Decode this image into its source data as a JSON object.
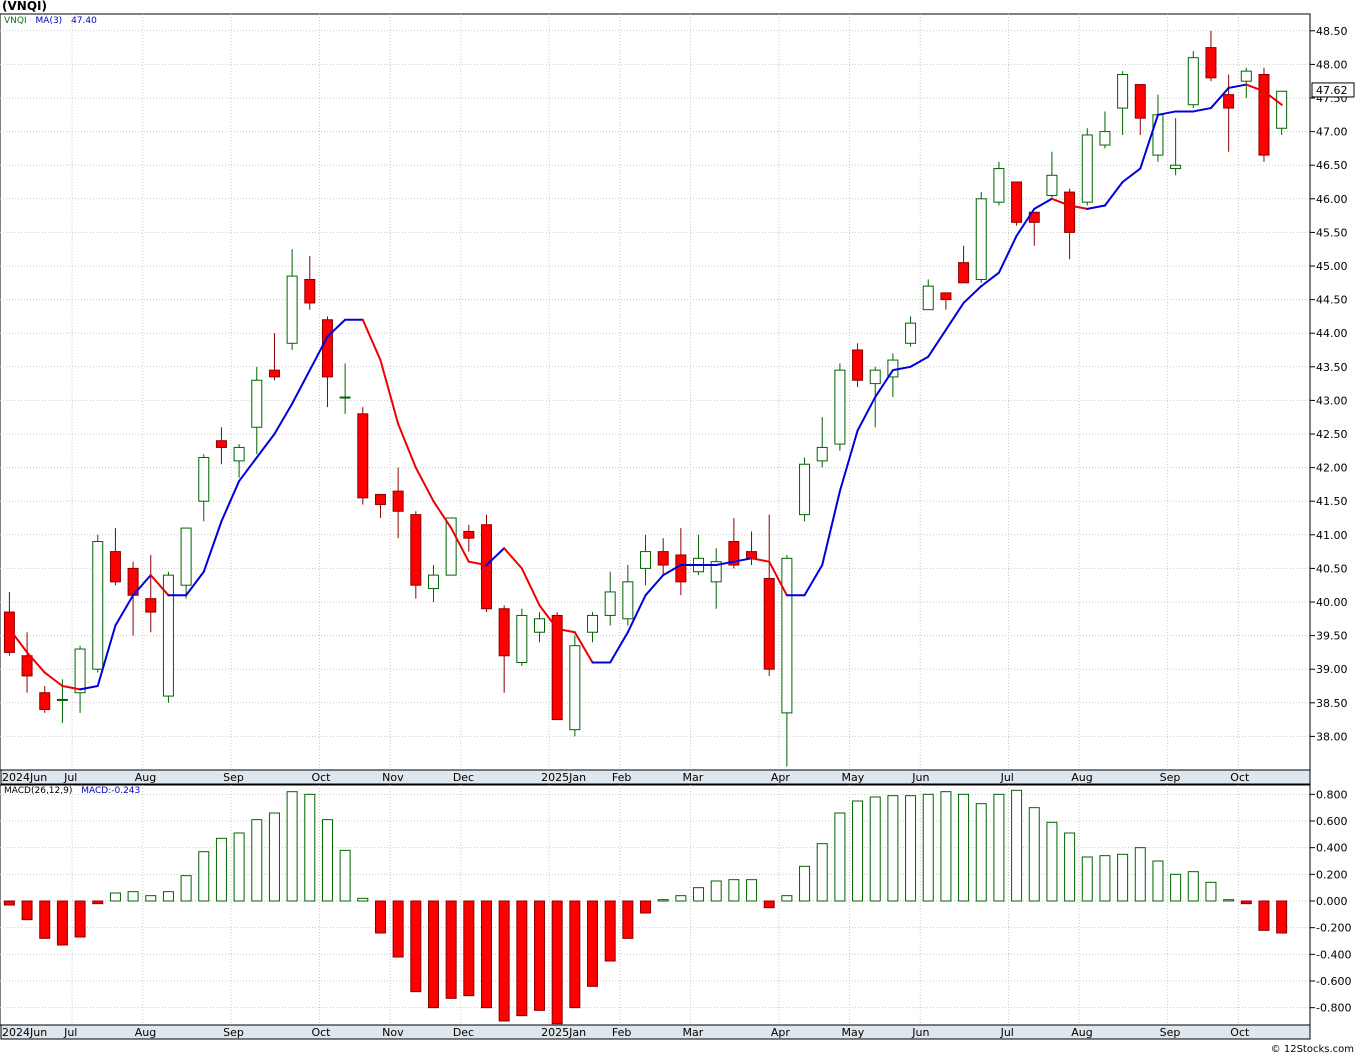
{
  "title": "(VNQI)",
  "watermark": "© 12Stocks.com",
  "price_legend": {
    "ticker": "VNQI",
    "indicator": "MA(3)",
    "value": "47.40"
  },
  "macd_legend": {
    "indicator": "MACD(26,12,9)",
    "value": "MACD:-0.243"
  },
  "last_price_label": "47.62",
  "colors": {
    "up": "#ffffff",
    "up_border": "#006400",
    "down": "#ff0000",
    "down_border": "#8b0000",
    "ma_up": "#0000dd",
    "ma_down": "#ee0000",
    "grid": "#c8c8c8",
    "axis_band": "#dfe7ee"
  },
  "chart_data": [
    {
      "type": "candlestick",
      "title": "(VNQI)",
      "ylim": [
        37.5,
        48.75
      ],
      "ytick_labels": [
        "38.00",
        "38.50",
        "39.00",
        "39.50",
        "40.00",
        "40.50",
        "41.00",
        "41.50",
        "42.00",
        "42.50",
        "43.00",
        "43.50",
        "44.00",
        "44.50",
        "45.00",
        "45.50",
        "46.00",
        "46.50",
        "47.00",
        "47.50",
        "48.00",
        "48.50"
      ],
      "x_labels": [
        "2024Jun",
        "Jul",
        "Aug",
        "Sep",
        "Oct",
        "Nov",
        "Dec",
        "2025Jan",
        "Feb",
        "Mar",
        "Apr",
        "May",
        "Jun",
        "Jul",
        "Aug",
        "Sep",
        "Oct"
      ],
      "x_label_weeks": [
        0,
        4,
        8,
        13,
        18,
        22,
        26,
        31,
        35,
        39,
        44,
        48,
        52,
        57,
        61,
        66,
        70
      ],
      "grid": true,
      "series": [
        {
          "name": "VNQI",
          "candles": [
            {
              "o": 39.85,
              "h": 40.15,
              "l": 39.2,
              "c": 39.25
            },
            {
              "o": 39.2,
              "h": 39.55,
              "l": 38.65,
              "c": 38.9
            },
            {
              "o": 38.65,
              "h": 38.75,
              "l": 38.35,
              "c": 38.4
            },
            {
              "o": 38.55,
              "h": 38.85,
              "l": 38.2,
              "c": 38.55
            },
            {
              "o": 38.65,
              "h": 39.35,
              "l": 38.35,
              "c": 39.3
            },
            {
              "o": 39.0,
              "h": 41.0,
              "l": 38.95,
              "c": 40.9
            },
            {
              "o": 40.75,
              "h": 41.1,
              "l": 40.25,
              "c": 40.3
            },
            {
              "o": 40.5,
              "h": 40.6,
              "l": 39.5,
              "c": 40.1
            },
            {
              "o": 40.05,
              "h": 40.7,
              "l": 39.55,
              "c": 39.85
            },
            {
              "o": 38.6,
              "h": 40.45,
              "l": 38.5,
              "c": 40.4
            },
            {
              "o": 40.25,
              "h": 41.1,
              "l": 40.05,
              "c": 41.1
            },
            {
              "o": 41.5,
              "h": 42.2,
              "l": 41.2,
              "c": 42.15
            },
            {
              "o": 42.4,
              "h": 42.6,
              "l": 42.05,
              "c": 42.3
            },
            {
              "o": 42.1,
              "h": 42.35,
              "l": 41.85,
              "c": 42.3
            },
            {
              "o": 42.6,
              "h": 43.5,
              "l": 42.2,
              "c": 43.3
            },
            {
              "o": 43.45,
              "h": 44.0,
              "l": 43.3,
              "c": 43.35
            },
            {
              "o": 43.85,
              "h": 45.25,
              "l": 43.75,
              "c": 44.85
            },
            {
              "o": 44.8,
              "h": 45.15,
              "l": 44.35,
              "c": 44.45
            },
            {
              "o": 44.2,
              "h": 44.25,
              "l": 42.9,
              "c": 43.35
            },
            {
              "o": 43.05,
              "h": 43.55,
              "l": 42.8,
              "c": 43.05
            },
            {
              "o": 42.8,
              "h": 42.9,
              "l": 41.45,
              "c": 41.55
            },
            {
              "o": 41.6,
              "h": 41.6,
              "l": 41.25,
              "c": 41.45
            },
            {
              "o": 41.65,
              "h": 42.0,
              "l": 40.95,
              "c": 41.35
            },
            {
              "o": 41.3,
              "h": 41.35,
              "l": 40.05,
              "c": 40.25
            },
            {
              "o": 40.2,
              "h": 40.55,
              "l": 40.0,
              "c": 40.4
            },
            {
              "o": 40.4,
              "h": 41.25,
              "l": 40.4,
              "c": 41.25
            },
            {
              "o": 41.05,
              "h": 41.15,
              "l": 40.75,
              "c": 40.95
            },
            {
              "o": 41.15,
              "h": 41.3,
              "l": 39.85,
              "c": 39.9
            },
            {
              "o": 39.9,
              "h": 39.95,
              "l": 38.65,
              "c": 39.2
            },
            {
              "o": 39.1,
              "h": 39.9,
              "l": 39.05,
              "c": 39.8
            },
            {
              "o": 39.55,
              "h": 39.85,
              "l": 39.4,
              "c": 39.75
            },
            {
              "o": 39.8,
              "h": 39.85,
              "l": 38.25,
              "c": 38.25
            },
            {
              "o": 38.1,
              "h": 39.5,
              "l": 38.0,
              "c": 39.35
            },
            {
              "o": 39.55,
              "h": 39.85,
              "l": 39.4,
              "c": 39.8
            },
            {
              "o": 39.8,
              "h": 40.45,
              "l": 39.65,
              "c": 40.15
            },
            {
              "o": 39.75,
              "h": 40.55,
              "l": 39.65,
              "c": 40.3
            },
            {
              "o": 40.5,
              "h": 41.0,
              "l": 40.25,
              "c": 40.75
            },
            {
              "o": 40.75,
              "h": 40.95,
              "l": 40.4,
              "c": 40.55
            },
            {
              "o": 40.7,
              "h": 41.1,
              "l": 40.1,
              "c": 40.3
            },
            {
              "o": 40.45,
              "h": 41.0,
              "l": 40.4,
              "c": 40.65
            },
            {
              "o": 40.3,
              "h": 40.8,
              "l": 39.9,
              "c": 40.6
            },
            {
              "o": 40.9,
              "h": 41.25,
              "l": 40.5,
              "c": 40.55
            },
            {
              "o": 40.75,
              "h": 41.05,
              "l": 40.55,
              "c": 40.65
            },
            {
              "o": 40.35,
              "h": 41.3,
              "l": 38.9,
              "c": 39.0
            },
            {
              "o": 38.35,
              "h": 40.7,
              "l": 37.55,
              "c": 40.65
            },
            {
              "o": 41.3,
              "h": 42.15,
              "l": 41.2,
              "c": 42.05
            },
            {
              "o": 42.1,
              "h": 42.75,
              "l": 42.0,
              "c": 42.3
            },
            {
              "o": 42.35,
              "h": 43.55,
              "l": 42.25,
              "c": 43.45
            },
            {
              "o": 43.75,
              "h": 43.85,
              "l": 43.2,
              "c": 43.3
            },
            {
              "o": 43.25,
              "h": 43.5,
              "l": 42.6,
              "c": 43.45
            },
            {
              "o": 43.35,
              "h": 43.7,
              "l": 43.05,
              "c": 43.6
            },
            {
              "o": 43.85,
              "h": 44.25,
              "l": 43.8,
              "c": 44.15
            },
            {
              "o": 44.35,
              "h": 44.8,
              "l": 44.35,
              "c": 44.7
            },
            {
              "o": 44.6,
              "h": 44.6,
              "l": 44.35,
              "c": 44.5
            },
            {
              "o": 45.05,
              "h": 45.3,
              "l": 44.75,
              "c": 44.75
            },
            {
              "o": 44.8,
              "h": 46.1,
              "l": 44.75,
              "c": 46.0
            },
            {
              "o": 45.95,
              "h": 46.55,
              "l": 45.9,
              "c": 46.45
            },
            {
              "o": 46.25,
              "h": 46.25,
              "l": 45.6,
              "c": 45.65
            },
            {
              "o": 45.8,
              "h": 45.8,
              "l": 45.3,
              "c": 45.65
            },
            {
              "o": 46.05,
              "h": 46.7,
              "l": 46.0,
              "c": 46.35
            },
            {
              "o": 46.1,
              "h": 46.15,
              "l": 45.1,
              "c": 45.5
            },
            {
              "o": 45.95,
              "h": 47.05,
              "l": 45.9,
              "c": 46.95
            },
            {
              "o": 46.8,
              "h": 47.3,
              "l": 46.75,
              "c": 47.0
            },
            {
              "o": 47.35,
              "h": 47.9,
              "l": 46.95,
              "c": 47.85
            },
            {
              "o": 47.7,
              "h": 47.7,
              "l": 46.95,
              "c": 47.2
            },
            {
              "o": 46.65,
              "h": 47.55,
              "l": 46.55,
              "c": 47.25
            },
            {
              "o": 46.45,
              "h": 47.2,
              "l": 46.35,
              "c": 46.5
            },
            {
              "o": 47.4,
              "h": 48.2,
              "l": 47.35,
              "c": 48.1
            },
            {
              "o": 48.25,
              "h": 48.5,
              "l": 47.75,
              "c": 47.8
            },
            {
              "o": 47.55,
              "h": 47.85,
              "l": 46.7,
              "c": 47.35
            },
            {
              "o": 47.75,
              "h": 47.95,
              "l": 47.5,
              "c": 47.9
            },
            {
              "o": 47.85,
              "h": 47.95,
              "l": 46.55,
              "c": 46.65
            },
            {
              "o": 47.05,
              "h": 47.6,
              "l": 46.95,
              "c": 47.6
            }
          ]
        },
        {
          "name": "MA(3)",
          "values": [
            39.6,
            39.25,
            38.95,
            38.75,
            38.7,
            38.75,
            39.65,
            40.1,
            40.4,
            40.1,
            40.1,
            40.45,
            41.2,
            41.8,
            42.15,
            42.5,
            42.95,
            43.45,
            43.95,
            44.2,
            44.2,
            43.6,
            42.65,
            42.0,
            41.5,
            41.1,
            40.6,
            40.55,
            40.8,
            40.5,
            39.95,
            39.6,
            39.55,
            39.1,
            39.1,
            39.55,
            40.1,
            40.4,
            40.55,
            40.55,
            40.55,
            40.6,
            40.65,
            40.6,
            40.1,
            40.1,
            40.55,
            41.65,
            42.55,
            43.05,
            43.45,
            43.5,
            43.65,
            44.05,
            44.45,
            44.7,
            44.9,
            45.45,
            45.85,
            46.0,
            45.9,
            45.85,
            45.9,
            46.25,
            46.45,
            47.25,
            47.3,
            47.3,
            47.35,
            47.65,
            47.7,
            47.6,
            47.4
          ]
        }
      ]
    },
    {
      "type": "bar",
      "title": "MACD(26,12,9)",
      "ylim": [
        -0.93,
        0.87
      ],
      "ytick_labels": [
        "-0.800",
        "-0.600",
        "-0.400",
        "-0.200",
        "0.000",
        "0.200",
        "0.400",
        "0.600",
        "0.800"
      ],
      "x_labels": [
        "2024Jun",
        "Jul",
        "Aug",
        "Sep",
        "Oct",
        "Nov",
        "Dec",
        "2025Jan",
        "Feb",
        "Mar",
        "Apr",
        "May",
        "Jun",
        "Jul",
        "Aug",
        "Sep",
        "Oct"
      ],
      "series": [
        {
          "name": "MACD",
          "values": [
            -0.03,
            -0.14,
            -0.28,
            -0.33,
            -0.27,
            -0.02,
            0.06,
            0.07,
            0.04,
            0.07,
            0.19,
            0.37,
            0.47,
            0.51,
            0.61,
            0.66,
            0.82,
            0.8,
            0.61,
            0.38,
            0.02,
            -0.24,
            -0.42,
            -0.68,
            -0.8,
            -0.73,
            -0.71,
            -0.8,
            -0.9,
            -0.86,
            -0.82,
            -0.92,
            -0.8,
            -0.64,
            -0.45,
            -0.28,
            -0.09,
            0.01,
            0.04,
            0.1,
            0.15,
            0.16,
            0.16,
            -0.05,
            0.04,
            0.26,
            0.43,
            0.66,
            0.75,
            0.78,
            0.79,
            0.79,
            0.8,
            0.82,
            0.8,
            0.73,
            0.8,
            0.83,
            0.7,
            0.59,
            0.51,
            0.33,
            0.34,
            0.35,
            0.4,
            0.3,
            0.2,
            0.22,
            0.14,
            0.01,
            -0.02,
            -0.22,
            -0.24
          ]
        }
      ]
    }
  ]
}
